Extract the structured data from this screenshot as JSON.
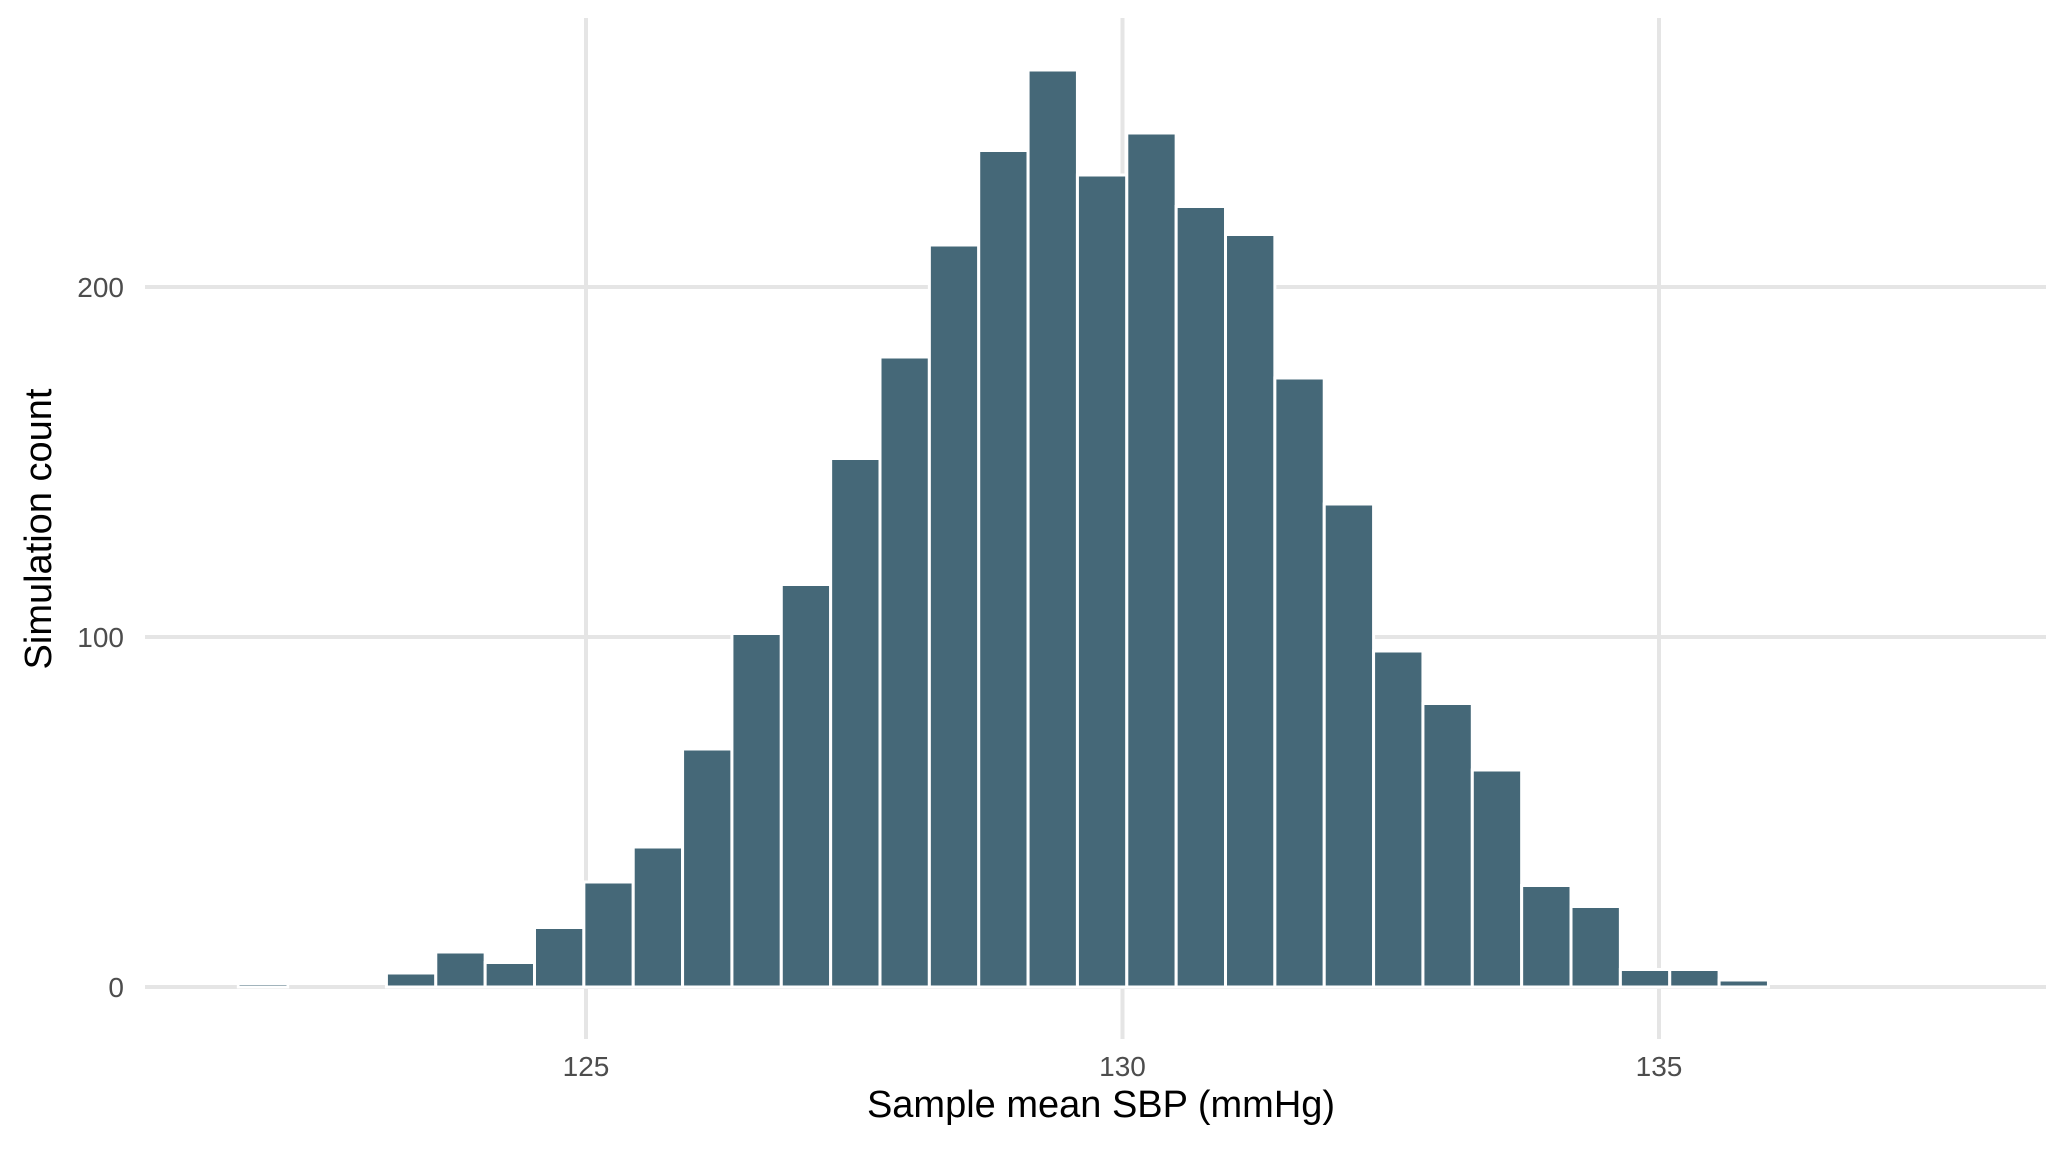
{
  "chart_data": {
    "type": "bar",
    "subtype": "histogram",
    "title": "",
    "xlabel": "Sample mean SBP (mmHg)",
    "ylabel": "Simulation count",
    "xlim": [
      120.5,
      138.5
    ],
    "ylim": [
      -15,
      262
    ],
    "x_ticks": [
      125,
      130,
      135
    ],
    "x_tick_labels": [
      "125",
      "130",
      "135"
    ],
    "y_ticks": [
      0,
      100,
      200
    ],
    "y_tick_labels": [
      "0",
      "100",
      "200"
    ],
    "grid": true,
    "legend": "none",
    "bin_width": 0.46,
    "bins": [
      {
        "x_start": 121.3,
        "x_end": 121.76,
        "count": 0
      },
      {
        "x_start": 121.76,
        "x_end": 122.22,
        "count": 1
      },
      {
        "x_start": 122.22,
        "x_end": 122.68,
        "count": 0
      },
      {
        "x_start": 122.68,
        "x_end": 123.14,
        "count": 0
      },
      {
        "x_start": 123.14,
        "x_end": 123.6,
        "count": 4
      },
      {
        "x_start": 123.6,
        "x_end": 124.06,
        "count": 10
      },
      {
        "x_start": 124.06,
        "x_end": 124.52,
        "count": 7
      },
      {
        "x_start": 124.52,
        "x_end": 124.98,
        "count": 17
      },
      {
        "x_start": 124.98,
        "x_end": 125.44,
        "count": 30
      },
      {
        "x_start": 125.44,
        "x_end": 125.9,
        "count": 40
      },
      {
        "x_start": 125.9,
        "x_end": 126.36,
        "count": 68
      },
      {
        "x_start": 126.36,
        "x_end": 126.82,
        "count": 101
      },
      {
        "x_start": 126.82,
        "x_end": 127.28,
        "count": 115
      },
      {
        "x_start": 127.28,
        "x_end": 127.74,
        "count": 151
      },
      {
        "x_start": 127.74,
        "x_end": 128.2,
        "count": 180
      },
      {
        "x_start": 128.2,
        "x_end": 128.66,
        "count": 212
      },
      {
        "x_start": 128.66,
        "x_end": 129.12,
        "count": 239
      },
      {
        "x_start": 129.12,
        "x_end": 129.58,
        "count": 262
      },
      {
        "x_start": 129.58,
        "x_end": 130.04,
        "count": 232
      },
      {
        "x_start": 130.04,
        "x_end": 130.5,
        "count": 244
      },
      {
        "x_start": 130.5,
        "x_end": 130.96,
        "count": 223
      },
      {
        "x_start": 130.96,
        "x_end": 131.42,
        "count": 215
      },
      {
        "x_start": 131.42,
        "x_end": 131.88,
        "count": 174
      },
      {
        "x_start": 131.88,
        "x_end": 132.34,
        "count": 138
      },
      {
        "x_start": 132.34,
        "x_end": 132.8,
        "count": 96
      },
      {
        "x_start": 132.8,
        "x_end": 133.26,
        "count": 81
      },
      {
        "x_start": 133.26,
        "x_end": 133.72,
        "count": 62
      },
      {
        "x_start": 133.72,
        "x_end": 134.18,
        "count": 29
      },
      {
        "x_start": 134.18,
        "x_end": 134.64,
        "count": 23
      },
      {
        "x_start": 134.64,
        "x_end": 135.1,
        "count": 5
      },
      {
        "x_start": 135.1,
        "x_end": 135.56,
        "count": 5
      },
      {
        "x_start": 135.56,
        "x_end": 136.02,
        "count": 2
      },
      {
        "x_start": 136.02,
        "x_end": 136.48,
        "count": 0
      },
      {
        "x_start": 136.48,
        "x_end": 136.94,
        "count": 0
      },
      {
        "x_start": 136.94,
        "x_end": 137.4,
        "count": 0
      }
    ],
    "colors": {
      "bar_fill": "#456878",
      "bar_outline": "#ffffff",
      "grid": "#e5e5e5",
      "tick_text": "#4d4d4d",
      "axis_title": "#000000",
      "background": "#ffffff"
    }
  }
}
